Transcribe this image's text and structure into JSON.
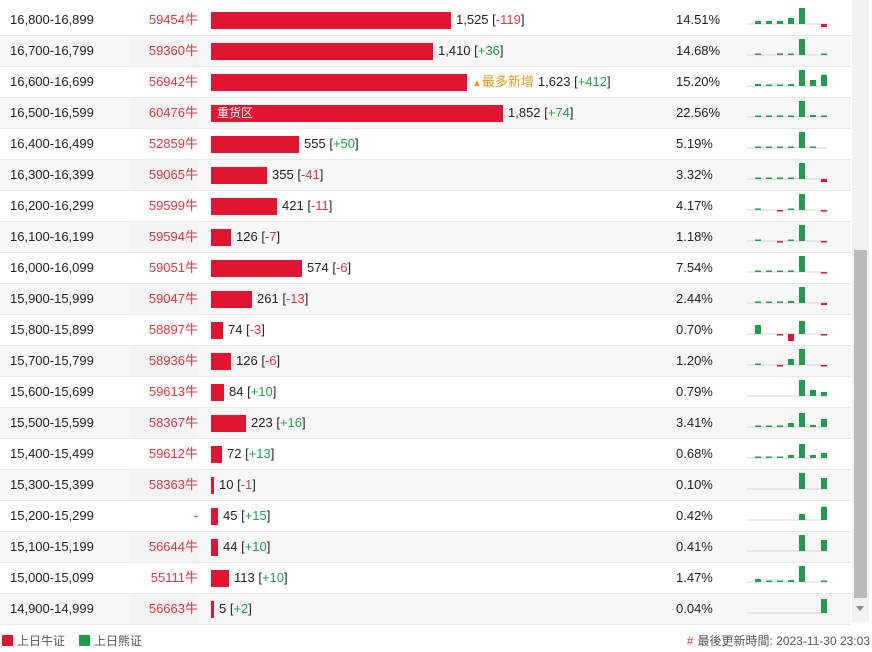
{
  "colors": {
    "bull": "#e0152f",
    "bear": "#1f9d4a",
    "tag": "#e8961a"
  },
  "rows": [
    {
      "range": "16,800-16,899",
      "strike": "59454牛",
      "bar": 1525,
      "value": "1,525",
      "change": "-119",
      "pct": "14.51%",
      "tag": "",
      "spark": [
        3,
        3,
        3,
        6,
        16,
        0,
        -3
      ]
    },
    {
      "range": "16,700-16,799",
      "strike": "59360牛",
      "bar": 1410,
      "value": "1,410",
      "change": "+36",
      "pct": "14.68%",
      "tag": "",
      "spark": [
        1,
        0,
        1,
        1,
        16,
        0,
        0.5
      ]
    },
    {
      "range": "16,600-16,699",
      "strike": "56942牛",
      "bar": 1623,
      "value": "1,623",
      "change": "+412",
      "pct": "15.20%",
      "tag": "最多新增",
      "spark": [
        2,
        1,
        1,
        2,
        16,
        6,
        11
      ]
    },
    {
      "range": "16,500-16,599",
      "strike": "60476牛",
      "bar": 1852,
      "value": "1,852",
      "change": "+74",
      "pct": "22.56%",
      "tag": "",
      "label": "重货区",
      "spark": [
        1,
        0.5,
        0.5,
        1,
        16,
        2,
        1
      ]
    },
    {
      "range": "16,400-16,499",
      "strike": "52859牛",
      "bar": 555,
      "value": "555",
      "change": "+50",
      "pct": "5.19%",
      "tag": "",
      "spark": [
        0.5,
        0.5,
        0.5,
        0.5,
        16,
        0.5,
        0
      ]
    },
    {
      "range": "16,300-16,399",
      "strike": "59065牛",
      "bar": 355,
      "value": "355",
      "change": "-41",
      "pct": "3.32%",
      "tag": "",
      "spark": [
        0.5,
        0.5,
        0.5,
        0.5,
        16,
        0,
        -3
      ]
    },
    {
      "range": "16,200-16,299",
      "strike": "59599牛",
      "bar": 421,
      "value": "421",
      "change": "-11",
      "pct": "4.17%",
      "tag": "",
      "spark": [
        0.5,
        0,
        -0.5,
        0.5,
        16,
        0,
        -0.5
      ]
    },
    {
      "range": "16,100-16,199",
      "strike": "59594牛",
      "bar": 126,
      "value": "126",
      "change": "-7",
      "pct": "1.18%",
      "tag": "",
      "spark": [
        0.5,
        0,
        -0.5,
        0.5,
        16,
        0,
        -0.5
      ]
    },
    {
      "range": "16,000-16,099",
      "strike": "59051牛",
      "bar": 574,
      "value": "574",
      "change": "-6",
      "pct": "7.54%",
      "tag": "",
      "spark": [
        0.5,
        0.5,
        0.5,
        1,
        16,
        0,
        -0.5
      ]
    },
    {
      "range": "15,900-15,999",
      "strike": "59047牛",
      "bar": 261,
      "value": "261",
      "change": "-13",
      "pct": "2.44%",
      "tag": "",
      "spark": [
        1,
        1,
        1,
        2,
        16,
        0,
        -2
      ]
    },
    {
      "range": "15,800-15,899",
      "strike": "58897牛",
      "bar": 74,
      "value": "74",
      "change": "-3",
      "pct": "0.70%",
      "tag": "",
      "spark": [
        9,
        0,
        -1,
        -16,
        13,
        0,
        -1
      ]
    },
    {
      "range": "15,700-15,799",
      "strike": "58936牛",
      "bar": 126,
      "value": "126",
      "change": "-6",
      "pct": "1.20%",
      "tag": "",
      "spark": [
        1,
        0,
        -1,
        6,
        16,
        0,
        -0.5
      ]
    },
    {
      "range": "15,600-15,699",
      "strike": "59613牛",
      "bar": 84,
      "value": "84",
      "change": "+10",
      "pct": "0.79%",
      "tag": "",
      "spark": [
        0,
        0,
        0,
        0,
        16,
        6,
        4
      ]
    },
    {
      "range": "15,500-15,599",
      "strike": "58367牛",
      "bar": 223,
      "value": "223",
      "change": "+16",
      "pct": "3.41%",
      "tag": "",
      "spark": [
        1,
        1,
        1,
        4,
        14,
        2,
        8
      ]
    },
    {
      "range": "15,400-15,499",
      "strike": "59612牛",
      "bar": 72,
      "value": "72",
      "change": "+13",
      "pct": "0.68%",
      "tag": "",
      "spark": [
        1,
        1,
        1,
        3,
        14,
        3,
        5
      ]
    },
    {
      "range": "15,300-15,399",
      "strike": "58363牛",
      "bar": 10,
      "value": "10",
      "change": "-1",
      "pct": "0.10%",
      "tag": "",
      "spark": [
        0,
        0,
        0,
        0,
        16,
        0,
        11
      ]
    },
    {
      "range": "15,200-15,299",
      "strike": "-",
      "bar": 45,
      "value": "45",
      "change": "+15",
      "pct": "0.42%",
      "tag": "",
      "spark": [
        0,
        0,
        0,
        0,
        6,
        0,
        13
      ]
    },
    {
      "range": "15,100-15,199",
      "strike": "56644牛",
      "bar": 44,
      "value": "44",
      "change": "+10",
      "pct": "0.41%",
      "tag": "",
      "spark": [
        0,
        0,
        0,
        0,
        16,
        0,
        11
      ]
    },
    {
      "range": "15,000-15,099",
      "strike": "55111牛",
      "bar": 113,
      "value": "113",
      "change": "+10",
      "pct": "1.47%",
      "tag": "",
      "spark": [
        3,
        1,
        1,
        2,
        16,
        0,
        1
      ]
    },
    {
      "range": "14,900-14,999",
      "strike": "56663牛",
      "bar": 5,
      "value": "5",
      "change": "+2",
      "pct": "0.04%",
      "tag": "",
      "spark": [
        0,
        0,
        0,
        0,
        0,
        0,
        14
      ]
    }
  ],
  "footer": {
    "legend_bull": "上日牛证",
    "legend_bear": "上日熊证",
    "updated_label": "最後更新時間:",
    "updated_time": "2023-11-30 23:03"
  }
}
